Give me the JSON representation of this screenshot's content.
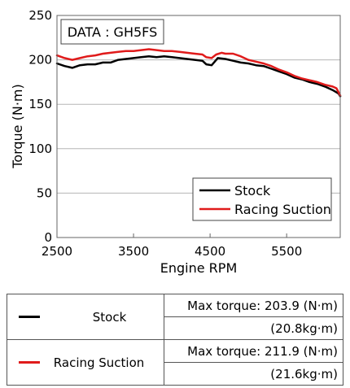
{
  "chart_data": {
    "type": "line",
    "badge": "DATA : GH5FS",
    "xlabel": "Engine RPM",
    "ylabel": "Torque (N·m)",
    "xlim": [
      2500,
      6200
    ],
    "ylim": [
      0,
      250
    ],
    "xticks": [
      2500,
      3500,
      4500,
      5500
    ],
    "yticks": [
      0,
      50,
      100,
      150,
      200,
      250
    ],
    "grid": "horizontal",
    "legend_position": "bottom-right",
    "series": [
      {
        "name": "Stock",
        "color": "#000000",
        "points": [
          [
            2500,
            196
          ],
          [
            2600,
            193
          ],
          [
            2700,
            191
          ],
          [
            2800,
            194
          ],
          [
            2900,
            195
          ],
          [
            3000,
            195
          ],
          [
            3100,
            197
          ],
          [
            3200,
            197
          ],
          [
            3300,
            200
          ],
          [
            3400,
            201
          ],
          [
            3500,
            202
          ],
          [
            3600,
            203
          ],
          [
            3700,
            204
          ],
          [
            3800,
            203
          ],
          [
            3900,
            204
          ],
          [
            4000,
            203
          ],
          [
            4100,
            202
          ],
          [
            4200,
            201
          ],
          [
            4300,
            200
          ],
          [
            4400,
            199
          ],
          [
            4450,
            195
          ],
          [
            4520,
            194
          ],
          [
            4560,
            198
          ],
          [
            4600,
            202
          ],
          [
            4700,
            201
          ],
          [
            4800,
            199
          ],
          [
            4900,
            197
          ],
          [
            5000,
            196
          ],
          [
            5100,
            194
          ],
          [
            5200,
            193
          ],
          [
            5300,
            190
          ],
          [
            5400,
            187
          ],
          [
            5500,
            184
          ],
          [
            5600,
            180
          ],
          [
            5700,
            178
          ],
          [
            5800,
            175
          ],
          [
            5900,
            173
          ],
          [
            6000,
            170
          ],
          [
            6100,
            166
          ],
          [
            6180,
            162
          ],
          [
            6200,
            159
          ]
        ]
      },
      {
        "name": "Racing Suction",
        "color": "#e01b1b",
        "points": [
          [
            2500,
            205
          ],
          [
            2600,
            202
          ],
          [
            2700,
            200
          ],
          [
            2800,
            202
          ],
          [
            2900,
            204
          ],
          [
            3000,
            205
          ],
          [
            3100,
            207
          ],
          [
            3200,
            208
          ],
          [
            3300,
            209
          ],
          [
            3400,
            210
          ],
          [
            3500,
            210
          ],
          [
            3600,
            211
          ],
          [
            3700,
            212
          ],
          [
            3800,
            211
          ],
          [
            3900,
            210
          ],
          [
            4000,
            210
          ],
          [
            4100,
            209
          ],
          [
            4200,
            208
          ],
          [
            4300,
            207
          ],
          [
            4400,
            206
          ],
          [
            4450,
            203
          ],
          [
            4520,
            202
          ],
          [
            4580,
            206
          ],
          [
            4650,
            208
          ],
          [
            4700,
            207
          ],
          [
            4800,
            207
          ],
          [
            4900,
            204
          ],
          [
            5000,
            200
          ],
          [
            5100,
            198
          ],
          [
            5200,
            196
          ],
          [
            5300,
            193
          ],
          [
            5400,
            189
          ],
          [
            5500,
            186
          ],
          [
            5600,
            182
          ],
          [
            5700,
            179
          ],
          [
            5800,
            177
          ],
          [
            5900,
            175
          ],
          [
            6000,
            172
          ],
          [
            6100,
            170
          ],
          [
            6150,
            168
          ],
          [
            6200,
            160
          ]
        ]
      }
    ]
  },
  "table": {
    "rows": [
      {
        "series": "Stock",
        "color": "#000000",
        "max_torque": "Max torque: 203.9 (N·m)",
        "kgm": "(20.8kg·m)"
      },
      {
        "series": "Racing Suction",
        "color": "#e01b1b",
        "max_torque": "Max torque: 211.9 (N·m)",
        "kgm": "(21.6kg·m)"
      }
    ]
  }
}
